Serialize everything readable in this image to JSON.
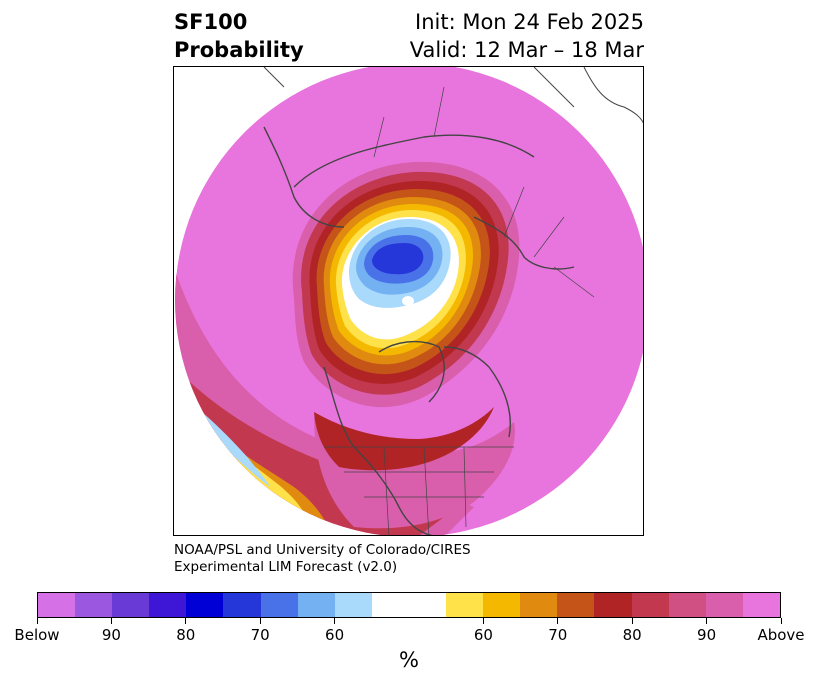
{
  "title": {
    "line1": "SF100",
    "line2": "Probability"
  },
  "meta": {
    "init": "Init: Mon 24 Feb 2025",
    "valid": "Valid: 12 Mar – 18 Mar"
  },
  "credit": {
    "line1": "NOAA/PSL and University of Colorado/CIRES",
    "line2": "Experimental LIM Forecast (v2.0)"
  },
  "colorbar": {
    "colors": [
      "#d670e6",
      "#9b57df",
      "#6a3ad6",
      "#3d16d6",
      "#0000d6",
      "#2637da",
      "#4a72e8",
      "#74b1f2",
      "#a9d9fb",
      "#ffffff",
      "#ffffff",
      "#ffe14a",
      "#f5b800",
      "#e08a10",
      "#c55419",
      "#b02426",
      "#c2384e",
      "#d05084",
      "#d95fac",
      "#e875dd"
    ],
    "tick_labels": [
      "Below",
      "90",
      "80",
      "70",
      "60",
      "60",
      "70",
      "80",
      "90",
      "Above"
    ],
    "unit_label": "%"
  },
  "map": {
    "colors": {
      "above_max": "#e875dd",
      "outer_pink": "#d95fac",
      "rose": "#c2384e",
      "red": "#b02426",
      "orange": "#e08a10",
      "gold": "#f5b800",
      "yellow": "#ffe14a",
      "neutral": "#ffffff",
      "light_blue": "#a9d9fb",
      "blue": "#4a72e8",
      "deep_blue": "#2637da"
    },
    "projection": "north polar stereographic"
  }
}
